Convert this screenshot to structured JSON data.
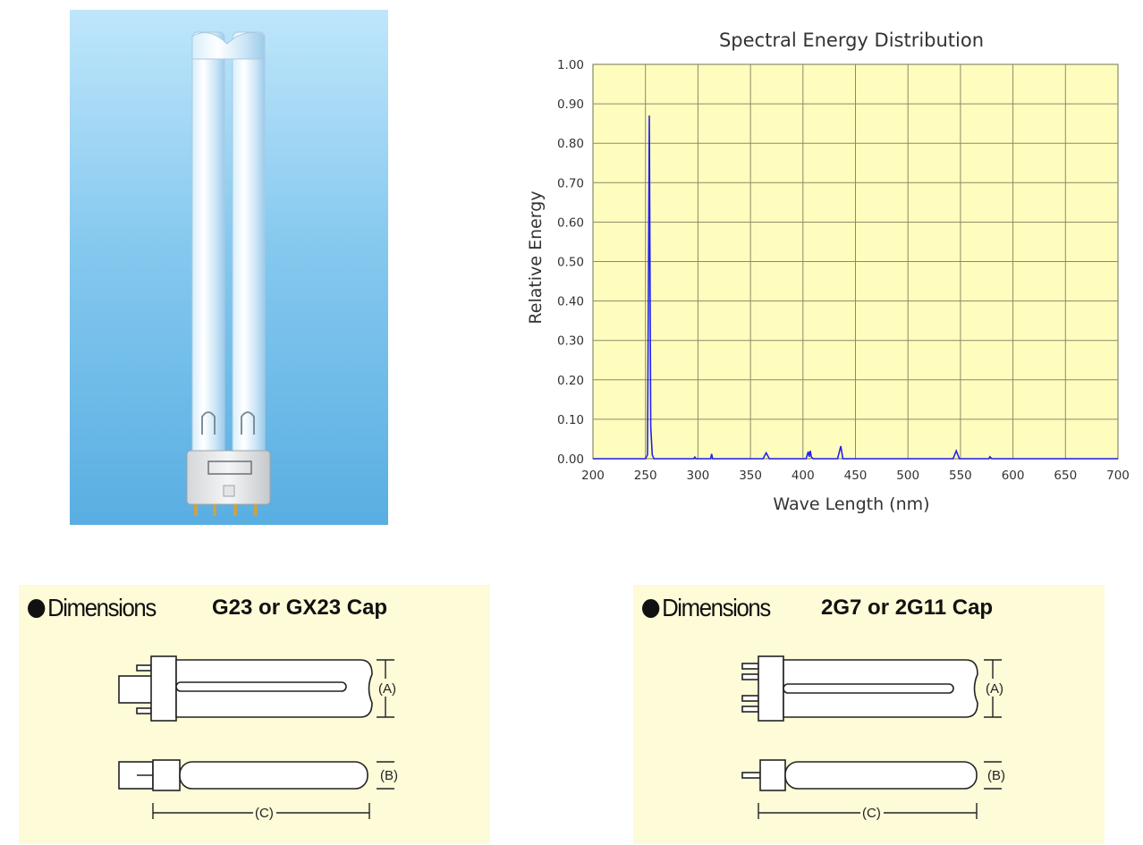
{
  "chart_data": {
    "type": "line",
    "title": "Spectral Energy Distribution",
    "xlabel": "Wave Length (nm)",
    "ylabel": "Relative Energy",
    "xlim": [
      200,
      700
    ],
    "ylim": [
      0,
      1.0
    ],
    "x_ticks": [
      "200",
      "250",
      "300",
      "350",
      "400",
      "450",
      "500",
      "550",
      "600",
      "650",
      "700"
    ],
    "y_ticks": [
      "0.00",
      "0.10",
      "0.20",
      "0.30",
      "0.40",
      "0.50",
      "0.60",
      "0.70",
      "0.80",
      "0.90",
      "1.00"
    ],
    "grid": true,
    "background_color": "#fffdbd",
    "line_color": "#2222ee",
    "series": [
      {
        "x": [
          200,
          250,
          252,
          253.7,
          255,
          256.5,
          258,
          262,
          296,
          297,
          298,
          305,
          312,
          313,
          314,
          320,
          362,
          365,
          368,
          380,
          403,
          405,
          406,
          407,
          408,
          410,
          433,
          436,
          438,
          450,
          543,
          546,
          549,
          560,
          577,
          578,
          580,
          600,
          700
        ],
        "y": [
          0,
          0,
          0.01,
          0.87,
          0.08,
          0.01,
          0.0,
          0.0,
          0,
          0.004,
          0,
          0,
          0,
          0.012,
          0,
          0,
          0,
          0.015,
          0,
          0,
          0,
          0.018,
          0.005,
          0.02,
          0.004,
          0,
          0,
          0.032,
          0,
          0,
          0,
          0.02,
          0,
          0,
          0,
          0.005,
          0,
          0,
          0
        ]
      }
    ]
  },
  "dimensions": [
    {
      "heading": "Dimensions",
      "cap": "G23 or GX23 Cap",
      "label_a": "(A)",
      "label_b": "(B)",
      "label_c": "(C)"
    },
    {
      "heading": "Dimensions",
      "cap": "2G7 or 2G11 Cap",
      "label_a": "(A)",
      "label_b": "(B)",
      "label_c": "(C)"
    }
  ]
}
